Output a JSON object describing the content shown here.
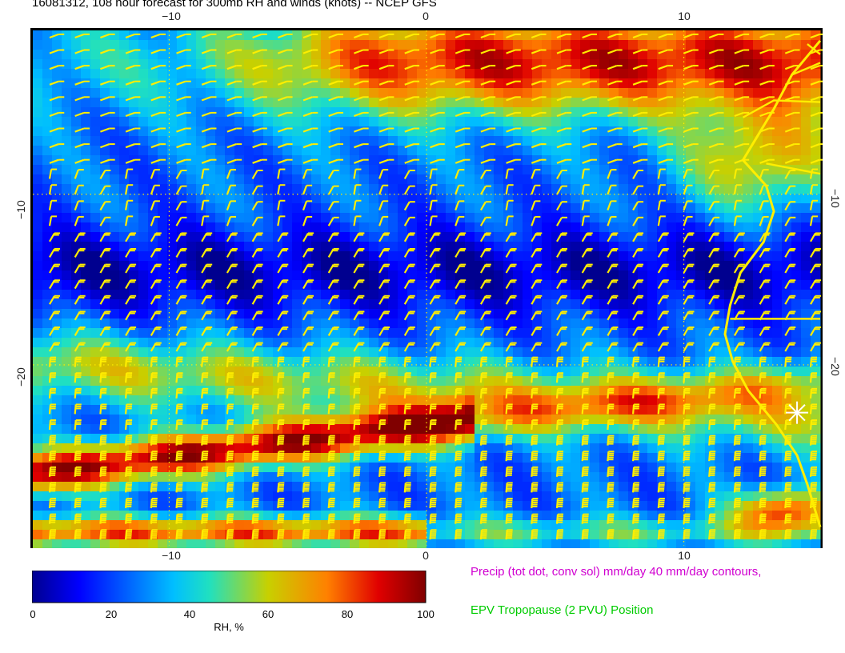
{
  "title": "16081312, 108 hour forecast for 300mb RH and winds (knots) -- NCEP GFS",
  "map": {
    "lon_range": [
      -15.3,
      15.3
    ],
    "lat_range": [
      -30.6,
      -0.4
    ],
    "lon_ticks": [
      {
        "value": -10,
        "label": "−10"
      },
      {
        "value": 0,
        "label": "0"
      },
      {
        "value": 10,
        "label": "10"
      }
    ],
    "lat_ticks": [
      {
        "value": -10,
        "label": "−10"
      },
      {
        "value": -20,
        "label": "−20"
      }
    ],
    "colors": {
      "coastline": "#ffee00",
      "wind_barbs": "#ffee00",
      "gridline": "#ffee00",
      "marker": "#ffffff"
    },
    "marker_icon": "star-marker-icon"
  },
  "colorbar": {
    "title": "RH, %",
    "ticks": [
      "0",
      "20",
      "40",
      "60",
      "80",
      "100"
    ],
    "range": [
      0,
      100
    ],
    "colormap": "jet"
  },
  "legend": {
    "precip": "Precip (tot dot, conv sol) mm/day 40 mm/day contours,",
    "epv": "EPV Tropopause (2 PVU) Position"
  }
}
